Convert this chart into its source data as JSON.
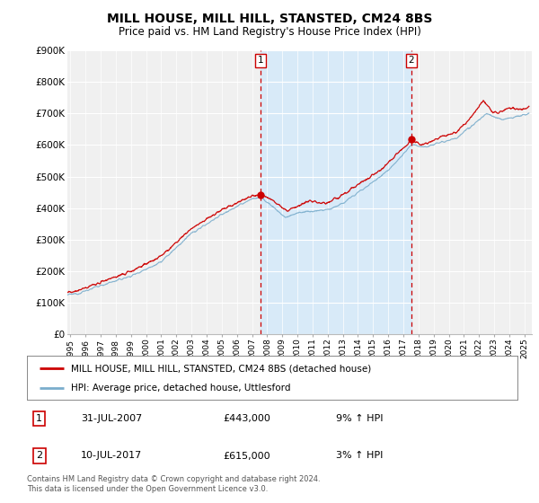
{
  "title": "MILL HOUSE, MILL HILL, STANSTED, CM24 8BS",
  "subtitle": "Price paid vs. HM Land Registry's House Price Index (HPI)",
  "ylabel_ticks": [
    "£0",
    "£100K",
    "£200K",
    "£300K",
    "£400K",
    "£500K",
    "£600K",
    "£700K",
    "£800K",
    "£900K"
  ],
  "ylim": [
    0,
    900000
  ],
  "xlim_start": 1994.8,
  "xlim_end": 2025.5,
  "sale1_date": 2007.58,
  "sale1_price": 443000,
  "sale1_label": "1",
  "sale2_date": 2017.53,
  "sale2_price": 615000,
  "sale2_label": "2",
  "red_line_color": "#cc0000",
  "blue_line_color": "#7aadcc",
  "shaded_color": "#d8eaf8",
  "vline_color": "#cc0000",
  "legend_line1": "MILL HOUSE, MILL HILL, STANSTED, CM24 8BS (detached house)",
  "legend_line2": "HPI: Average price, detached house, Uttlesford",
  "annotation1_date": "31-JUL-2007",
  "annotation1_price": "£443,000",
  "annotation1_hpi": "9% ↑ HPI",
  "annotation2_date": "10-JUL-2017",
  "annotation2_price": "£615,000",
  "annotation2_hpi": "3% ↑ HPI",
  "footer": "Contains HM Land Registry data © Crown copyright and database right 2024.\nThis data is licensed under the Open Government Licence v3.0.",
  "background_color": "#ffffff",
  "plot_bg_color": "#f0f0f0"
}
